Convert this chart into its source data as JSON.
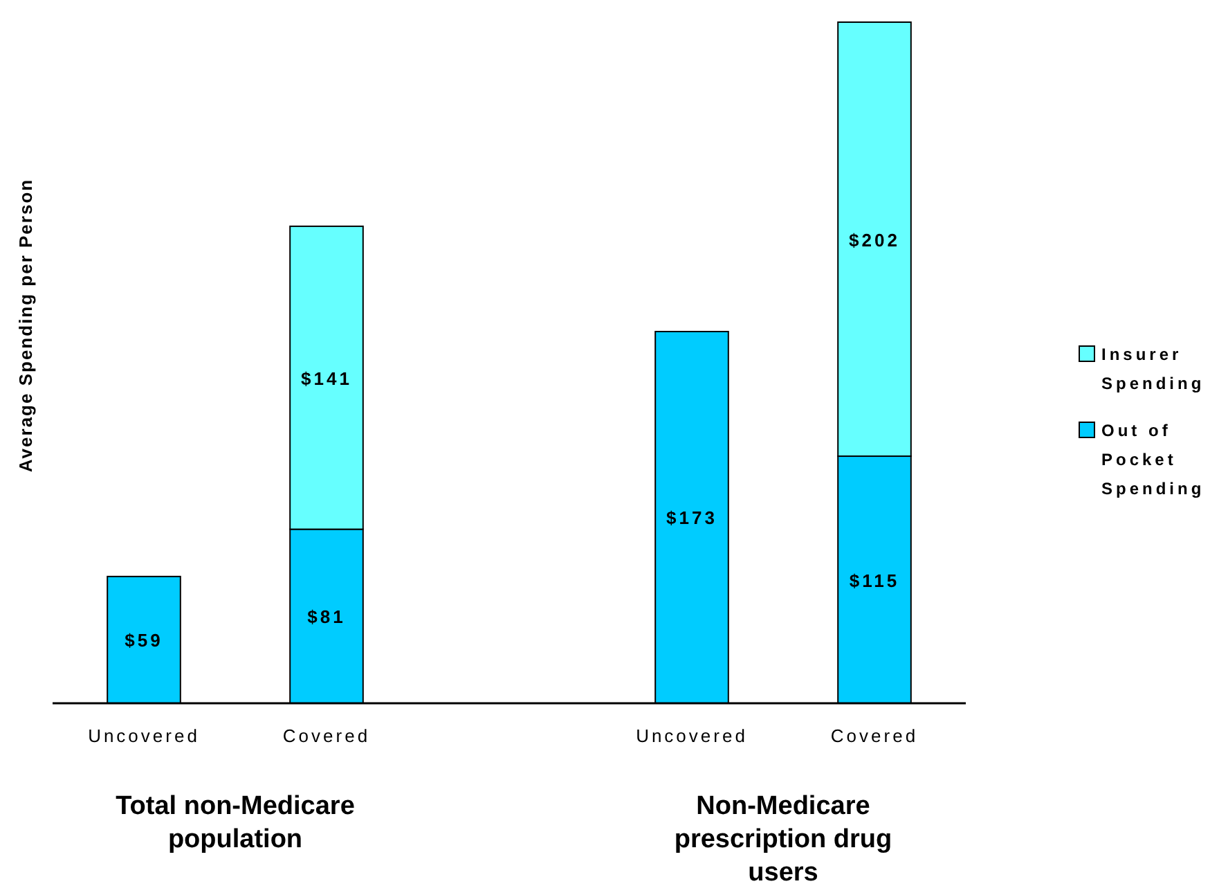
{
  "chart_data": {
    "type": "bar",
    "stacked": true,
    "ylabel": "Average Spending per Person",
    "categories": [
      "Uncovered",
      "Covered",
      null,
      "Uncovered",
      "Covered"
    ],
    "series": [
      {
        "name": "Out of Pocket Spending",
        "color": "#00ccff",
        "values": [
          59,
          81,
          null,
          173,
          115
        ],
        "value_labels": [
          "$59",
          "$81",
          null,
          "$173",
          "$115"
        ]
      },
      {
        "name": "Insurer Spending",
        "color": "#66ffff",
        "values": [
          null,
          141,
          null,
          null,
          202
        ],
        "value_labels": [
          null,
          "$141",
          null,
          null,
          "$202"
        ]
      }
    ],
    "legend": "right",
    "annotations": [
      "Total non-Medicare population",
      "Non-Medicare prescription drug users"
    ]
  }
}
